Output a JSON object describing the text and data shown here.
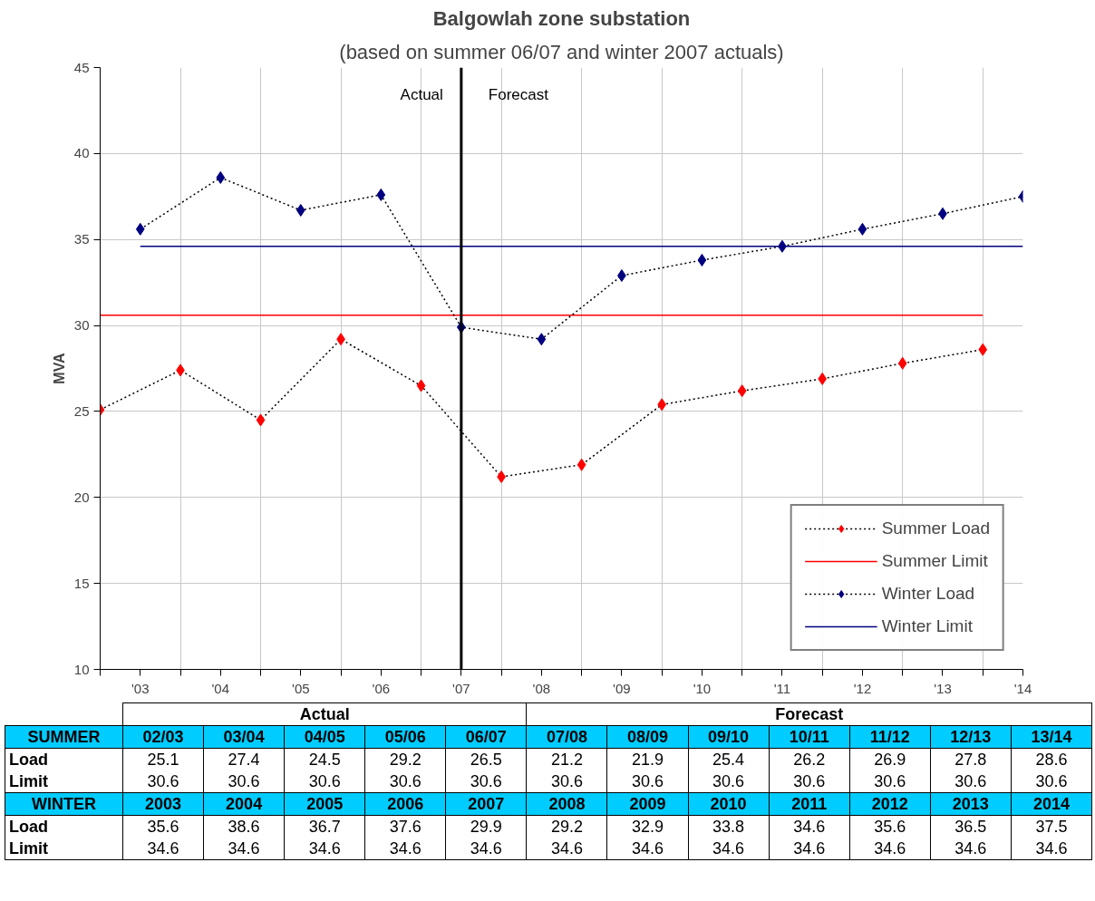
{
  "chart_data": {
    "type": "line",
    "title": "Balgowlah zone substation",
    "subtitle": "(based on summer 06/07 and winter 2007 actuals)",
    "ylabel": "MVA",
    "xlim": [
      2002.5,
      2014
    ],
    "ylim": [
      10,
      45
    ],
    "xticks": [
      {
        "value": 2002.5,
        "label": null
      },
      {
        "value": 2003,
        "label": "'03"
      },
      {
        "value": 2003.5,
        "label": null
      },
      {
        "value": 2004,
        "label": "'04"
      },
      {
        "value": 2004.5,
        "label": null
      },
      {
        "value": 2005,
        "label": "'05"
      },
      {
        "value": 2005.5,
        "label": null
      },
      {
        "value": 2006,
        "label": "'06"
      },
      {
        "value": 2006.5,
        "label": null
      },
      {
        "value": 2007,
        "label": "'07"
      },
      {
        "value": 2007.5,
        "label": null
      },
      {
        "value": 2008,
        "label": "'08"
      },
      {
        "value": 2008.5,
        "label": null
      },
      {
        "value": 2009,
        "label": "'09"
      },
      {
        "value": 2009.5,
        "label": null
      },
      {
        "value": 2010,
        "label": "'10"
      },
      {
        "value": 2010.5,
        "label": null
      },
      {
        "value": 2011,
        "label": "'11"
      },
      {
        "value": 2011.5,
        "label": null
      },
      {
        "value": 2012,
        "label": "'12"
      },
      {
        "value": 2012.5,
        "label": null
      },
      {
        "value": 2013,
        "label": "'13"
      },
      {
        "value": 2013.5,
        "label": null
      },
      {
        "value": 2014,
        "label": "'14"
      }
    ],
    "yticks": [
      10,
      15,
      20,
      25,
      30,
      35,
      40,
      45
    ],
    "grid": true,
    "legend": "bottom right",
    "series": [
      {
        "name": "Summer Load",
        "color": "#ff0000",
        "marker": "diamond",
        "line_style": "dotted",
        "x": [
          2002.5,
          2003.5,
          2004.5,
          2005.5,
          2006.5,
          2007.5,
          2008.5,
          2009.5,
          2010.5,
          2011.5,
          2012.5,
          2013.5
        ],
        "values": [
          25.1,
          27.4,
          24.5,
          29.2,
          26.5,
          21.2,
          21.9,
          25.4,
          26.2,
          26.9,
          27.8,
          28.6
        ]
      },
      {
        "name": "Summer Limit",
        "color": "#ff0000",
        "marker": "none",
        "line_style": "solid",
        "x": [
          2002.5,
          2003.5,
          2004.5,
          2005.5,
          2006.5,
          2007.5,
          2008.5,
          2009.5,
          2010.5,
          2011.5,
          2012.5,
          2013.5
        ],
        "values": [
          30.6,
          30.6,
          30.6,
          30.6,
          30.6,
          30.6,
          30.6,
          30.6,
          30.6,
          30.6,
          30.6,
          30.6
        ]
      },
      {
        "name": "Winter Load",
        "color": "#000080",
        "marker": "diamond",
        "line_style": "dotted",
        "x": [
          2003,
          2004,
          2005,
          2006,
          2007,
          2008,
          2009,
          2010,
          2011,
          2012,
          2013,
          2014
        ],
        "values": [
          35.6,
          38.6,
          36.7,
          37.6,
          29.9,
          29.2,
          32.9,
          33.8,
          34.6,
          35.6,
          36.5,
          37.5
        ]
      },
      {
        "name": "Winter Limit",
        "color": "#000080",
        "marker": "none",
        "line_style": "solid",
        "x": [
          2003,
          2004,
          2005,
          2006,
          2007,
          2008,
          2009,
          2010,
          2011,
          2012,
          2013,
          2014
        ],
        "values": [
          34.6,
          34.6,
          34.6,
          34.6,
          34.6,
          34.6,
          34.6,
          34.6,
          34.6,
          34.6,
          34.6,
          34.6
        ]
      }
    ],
    "ref_lines": [
      {
        "axis": "x",
        "value": 2007,
        "color": "#000000"
      }
    ],
    "annotations": [
      "Actual",
      "Forecast",
      "Actual",
      "Forecast",
      "SUMMER",
      "02/03",
      "03/04",
      "04/05",
      "05/06",
      "06/07",
      "07/08",
      "08/09",
      "09/10",
      "10/11",
      "11/12",
      "12/13",
      "13/14",
      "Load",
      "25.1",
      "27.4",
      "24.5",
      "29.2",
      "26.5",
      "21.2",
      "21.9",
      "25.4",
      "26.2",
      "26.9",
      "27.8",
      "28.6",
      "Limit",
      "30.6",
      "30.6",
      "30.6",
      "30.6",
      "30.6",
      "30.6",
      "30.6",
      "30.6",
      "30.6",
      "30.6",
      "30.6",
      "30.6",
      "WINTER",
      "2003",
      "2004",
      "2005",
      "2006",
      "2007",
      "2008",
      "2009",
      "2010",
      "2011",
      "2012",
      "2013",
      "2014",
      "Load",
      "35.6",
      "38.6",
      "36.7",
      "37.6",
      "29.9",
      "29.2",
      "32.9",
      "33.8",
      "34.6",
      "35.6",
      "36.5",
      "37.5",
      "Limit",
      "34.6",
      "34.6",
      "34.6",
      "34.6",
      "34.6",
      "34.6",
      "34.6",
      "34.6",
      "34.6",
      "34.6",
      "34.6",
      "34.6"
    ]
  }
}
